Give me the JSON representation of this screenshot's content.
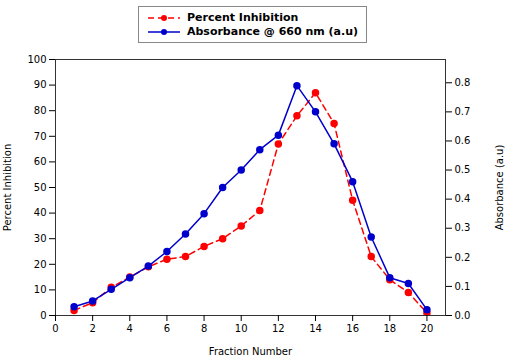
{
  "chart_data": {
    "type": "line",
    "xlabel": "Fraction Number",
    "ylabel": "Percent Inhibition",
    "y2label": "Absorbance (a.u)",
    "x": [
      1,
      2,
      3,
      4,
      5,
      6,
      7,
      8,
      9,
      10,
      11,
      12,
      13,
      14,
      15,
      16,
      17,
      18,
      19,
      20
    ],
    "series": [
      {
        "name": "Percent Inhibition",
        "color": "#FF0000",
        "marker": "circle",
        "line_style": "dashed",
        "values": [
          2,
          5,
          11,
          15,
          19,
          22,
          23,
          27,
          30,
          35,
          41,
          67,
          78,
          87,
          75,
          45,
          23,
          14,
          9,
          1
        ]
      },
      {
        "name": "Absorbance @ 660 nm (a.u)",
        "color": "#0000CD",
        "marker": "circle",
        "line_style": "solid",
        "axis": "y2",
        "values": [
          0.03,
          0.05,
          0.09,
          0.13,
          0.17,
          0.22,
          0.28,
          0.35,
          0.44,
          0.5,
          0.57,
          0.62,
          0.79,
          0.7,
          0.59,
          0.46,
          0.27,
          0.13,
          0.11,
          0.02
        ]
      }
    ],
    "xlim": [
      0,
      21
    ],
    "xticks": [
      0,
      2,
      4,
      6,
      8,
      10,
      12,
      14,
      16,
      18,
      20
    ],
    "ylim": [
      0,
      100
    ],
    "yticks": [
      0,
      10,
      20,
      30,
      40,
      50,
      60,
      70,
      80,
      90,
      100
    ],
    "y2lim": [
      0.0,
      0.88
    ],
    "y2ticks": [
      {
        "value": 0.0,
        "label": "0.0"
      },
      0.1,
      0.2,
      0.3,
      0.4,
      0.5,
      0.6,
      0.7,
      0.8
    ],
    "legend": "top",
    "grid": false
  }
}
